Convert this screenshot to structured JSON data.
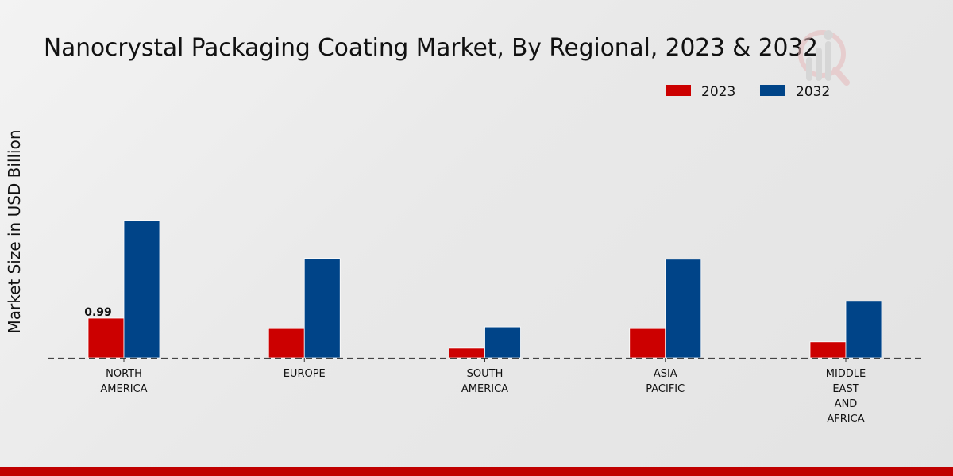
{
  "chart_data": {
    "type": "bar",
    "title": "Nanocrystal Packaging Coating Market, By Regional, 2023 & 2032",
    "xlabel": "",
    "ylabel": "Market Size in USD Billion",
    "categories": [
      [
        "NORTH",
        "AMERICA"
      ],
      [
        "EUROPE"
      ],
      [
        "SOUTH",
        "AMERICA"
      ],
      [
        "ASIA",
        "PACIFIC"
      ],
      [
        "MIDDLE",
        "EAST",
        "AND",
        "AFRICA"
      ]
    ],
    "series": [
      {
        "name": "2023",
        "color": "#cc0000",
        "values": [
          0.99,
          0.73,
          0.24,
          0.73,
          0.4
        ]
      },
      {
        "name": "2032",
        "color": "#004488",
        "values": [
          3.43,
          2.48,
          0.77,
          2.46,
          1.41
        ]
      }
    ],
    "data_labels": [
      {
        "series": 0,
        "category": 0,
        "text": "0.99"
      }
    ],
    "ylim": [
      0,
      5.2
    ],
    "grid": false,
    "legend": {
      "position": "top-right",
      "entries": [
        "2023",
        "2032"
      ]
    }
  },
  "watermark": {
    "icon": "market-research-logo-icon"
  },
  "footer": {
    "color": "#c00000"
  }
}
